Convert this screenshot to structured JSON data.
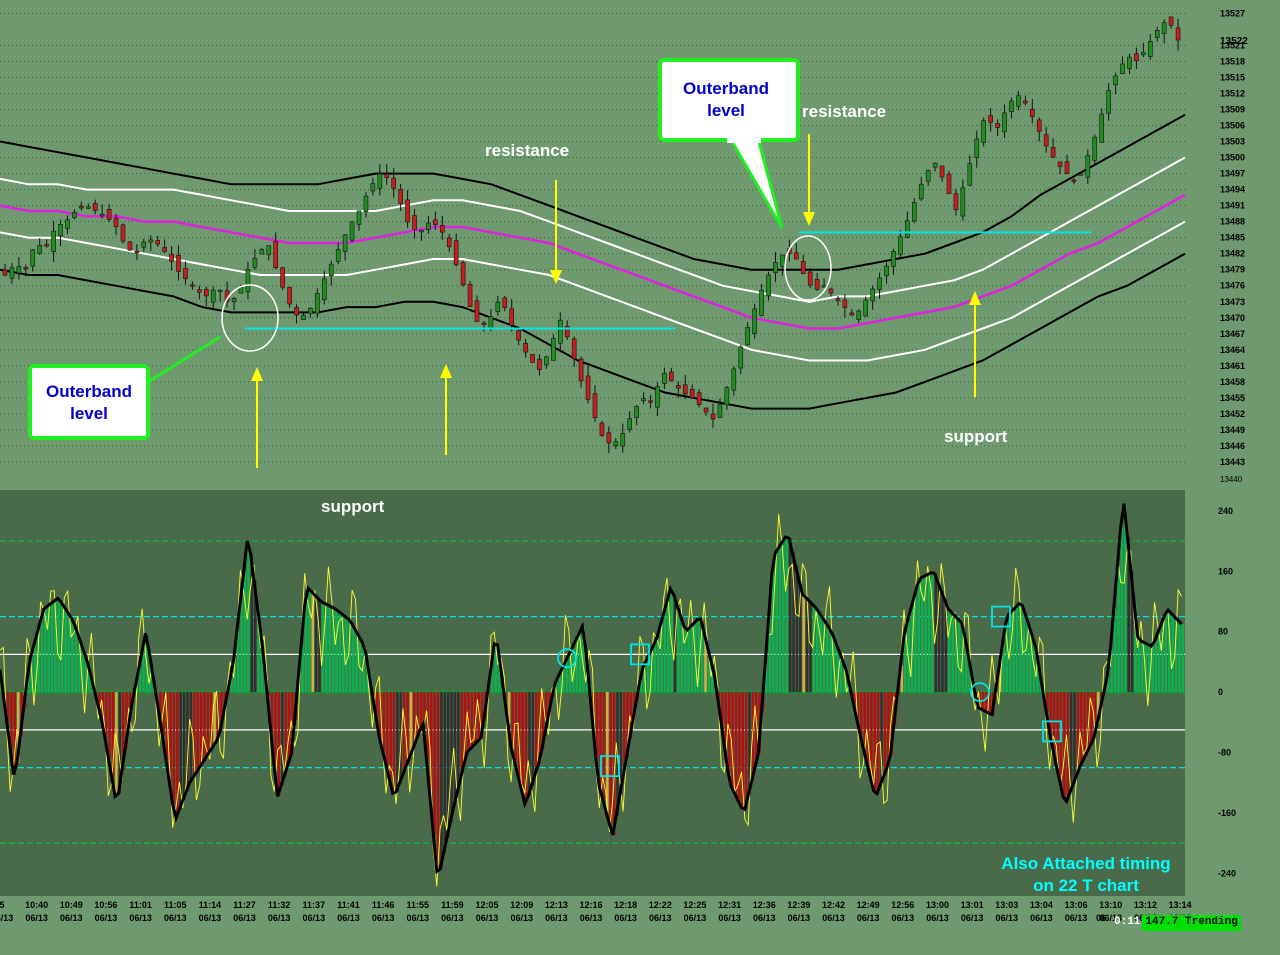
{
  "colors": {
    "background": "#6f9a6f",
    "lower_panel": "#4a6b4a",
    "up_candle": "#1f8f1f",
    "down_candle": "#c81e1e",
    "midline": "#e020e0",
    "inner_band": "#ffffff",
    "outer_band": "#000000",
    "level_line": "#00e6e6",
    "arrow": "#ffff00",
    "callout_text": "#0000cc",
    "callout_border": "#22ee22",
    "histogram_pos": "#10b050",
    "histogram_neg": "#b01010",
    "histogram_flat": "#303030",
    "histogram_highlight": "#d4b040"
  },
  "annotations": {
    "resistance_left": "resistance",
    "resistance_right": "resistance",
    "support_lower": "support",
    "support_right": "support",
    "callout_left": [
      "Outerband",
      "level"
    ],
    "callout_right": [
      "Outerband",
      "level"
    ],
    "footer_note": [
      "Also Attached timing",
      "on 22 T chart"
    ]
  },
  "status": {
    "time": "0:11",
    "label": "147.7 Trending"
  },
  "chart_data": [
    {
      "type": "candlestick",
      "panel": "price",
      "y_axis": {
        "ticks": [
          13443,
          13446,
          13449,
          13452,
          13455,
          13458,
          13461,
          13464,
          13467,
          13470,
          13473,
          13476,
          13479,
          13482,
          13485,
          13488,
          13491,
          13494,
          13497,
          13500,
          13503,
          13506,
          13509,
          13512,
          13515,
          13518,
          13521,
          13527
        ],
        "min": 13440,
        "max": 13528,
        "last_price": 13522,
        "bottom_label": "13440"
      },
      "x_axis": {
        "times": [
          "5",
          "10:40",
          "10:49",
          "10:56",
          "11:01",
          "11:05",
          "11:14",
          "11:27",
          "11:32",
          "11:37",
          "11:41",
          "11:46",
          "11:55",
          "11:59",
          "12:05",
          "12:09",
          "12:13",
          "12:16",
          "12:18",
          "12:22",
          "12:25",
          "12:31",
          "12:36",
          "12:39",
          "12:42",
          "12:49",
          "12:56",
          "13:00",
          "13:01",
          "13:03",
          "13:04",
          "13:06",
          "13:10",
          "13:12",
          "13:14"
        ],
        "dates": [
          "06/13",
          "06/13",
          "06/13",
          "06/13",
          "06/13",
          "06/13",
          "06/13",
          "06/13",
          "06/13",
          "06/13",
          "06/13",
          "06/13",
          "06/13",
          "06/13",
          "06/13",
          "06/13",
          "06/13",
          "06/13",
          "06/13",
          "06/13",
          "06/13",
          "06/13",
          "06/13",
          "06/13",
          "06/13",
          "06/13",
          "06/13",
          "06/13",
          "06/13",
          "06/13",
          "06/13",
          "06/13",
          "06/13",
          "06/13",
          "06/13"
        ],
        "extra_date_label": "06"
      },
      "close_path": [
        13478,
        13480,
        13479,
        13484,
        13483,
        13487,
        13488,
        13490,
        13491,
        13490,
        13489,
        13487,
        13483,
        13482,
        13485,
        13484,
        13482,
        13479,
        13477,
        13475,
        13474,
        13476,
        13473,
        13474,
        13479,
        13482,
        13484,
        13478,
        13473,
        13470,
        13471,
        13475,
        13479,
        13483,
        13487,
        13490,
        13494,
        13497,
        13496,
        13492,
        13487,
        13486,
        13488,
        13487,
        13483,
        13478,
        13472,
        13468,
        13470,
        13474,
        13469,
        13465,
        13462,
        13460,
        13465,
        13470,
        13464,
        13458,
        13453,
        13448,
        13446,
        13448,
        13452,
        13455,
        13454,
        13460,
        13458,
        13456,
        13455,
        13453,
        13451,
        13455,
        13460,
        13466,
        13471,
        13476,
        13480,
        13482,
        13482,
        13478,
        13475,
        13476,
        13474,
        13472,
        13470,
        13473,
        13476,
        13479,
        13483,
        13487,
        13492,
        13497,
        13499,
        13495,
        13490,
        13496,
        13503,
        13508,
        13505,
        13509,
        13512,
        13510,
        13506,
        13502,
        13499,
        13497,
        13495,
        13500,
        13505,
        13512,
        13516,
        13519,
        13518,
        13521,
        13524,
        13526,
        13522
      ],
      "lines": {
        "midline": [
          13491,
          13490,
          13490,
          13489,
          13489,
          13488,
          13488,
          13487,
          13486,
          13485,
          13484,
          13484,
          13484,
          13485,
          13486,
          13487,
          13487,
          13486,
          13485,
          13484,
          13482,
          13480,
          13478,
          13476,
          13474,
          13472,
          13470,
          13469,
          13468,
          13468,
          13469,
          13470,
          13471,
          13472,
          13474,
          13476,
          13479,
          13482,
          13484,
          13487,
          13490,
          13493
        ],
        "inner_upper": [
          13496,
          13495,
          13495,
          13494,
          13494,
          13494,
          13494,
          13493,
          13492,
          13491,
          13490,
          13490,
          13490,
          13490,
          13491,
          13492,
          13492,
          13491,
          13490,
          13488,
          13486,
          13484,
          13482,
          13480,
          13478,
          13476,
          13475,
          13474,
          13473,
          13474,
          13474,
          13475,
          13476,
          13477,
          13479,
          13482,
          13485,
          13488,
          13491,
          13494,
          13497,
          13500
        ],
        "inner_lower": [
          13486,
          13485,
          13485,
          13484,
          13483,
          13482,
          13481,
          13480,
          13479,
          13478,
          13478,
          13478,
          13478,
          13479,
          13480,
          13481,
          13481,
          13480,
          13479,
          13478,
          13476,
          13474,
          13472,
          13470,
          13468,
          13466,
          13464,
          13463,
          13462,
          13462,
          13462,
          13463,
          13464,
          13466,
          13468,
          13470,
          13473,
          13476,
          13479,
          13482,
          13485,
          13488
        ],
        "outer_upper": [
          13503,
          13502,
          13501,
          13500,
          13499,
          13498,
          13497,
          13496,
          13495,
          13495,
          13495,
          13495,
          13496,
          13497,
          13497,
          13497,
          13496,
          13495,
          13493,
          13491,
          13489,
          13487,
          13485,
          13483,
          13481,
          13480,
          13479,
          13479,
          13479,
          13479,
          13480,
          13481,
          13482,
          13484,
          13486,
          13489,
          13493,
          13496,
          13499,
          13502,
          13505,
          13508
        ],
        "outer_lower": [
          13479,
          13478,
          13478,
          13477,
          13476,
          13475,
          13474,
          13472,
          13471,
          13471,
          13471,
          13471,
          13472,
          13472,
          13473,
          13473,
          13472,
          13470,
          13468,
          13465,
          13462,
          13460,
          13458,
          13456,
          13455,
          13454,
          13453,
          13453,
          13453,
          13454,
          13455,
          13456,
          13458,
          13460,
          13462,
          13465,
          13468,
          13471,
          13474,
          13476,
          13479,
          13482
        ]
      },
      "levels": [
        {
          "value": 13468,
          "from_time": "11:27",
          "to_time": "12:22"
        },
        {
          "value": 13486,
          "from_time": "12:39",
          "to_time": "13:06"
        }
      ]
    },
    {
      "type": "histogram",
      "panel": "oscillator",
      "y_axis": {
        "ticks": [
          240,
          160,
          80,
          0,
          -80,
          -160,
          -240
        ],
        "min": -270,
        "max": 265
      },
      "reference_levels": [
        200,
        100,
        50,
        0,
        -50,
        -100,
        -200
      ],
      "oscillator": [
        30,
        -120,
        40,
        110,
        125,
        95,
        40,
        -40,
        -150,
        -20,
        80,
        -40,
        -170,
        -120,
        -90,
        -60,
        40,
        210,
        60,
        -140,
        -80,
        140,
        120,
        110,
        95,
        60,
        -60,
        -140,
        -90,
        -40,
        -250,
        -160,
        -80,
        -60,
        80,
        -70,
        -150,
        -90,
        10,
        50,
        90,
        -120,
        -190,
        -80,
        30,
        70,
        140,
        80,
        100,
        20,
        -120,
        -160,
        -80,
        180,
        210,
        130,
        110,
        80,
        30,
        -60,
        -140,
        -90,
        80,
        150,
        160,
        110,
        90,
        -20,
        -30,
        100,
        120,
        60,
        -60,
        -150,
        -100,
        -60,
        30,
        260,
        70,
        60,
        110,
        90
      ]
    }
  ]
}
